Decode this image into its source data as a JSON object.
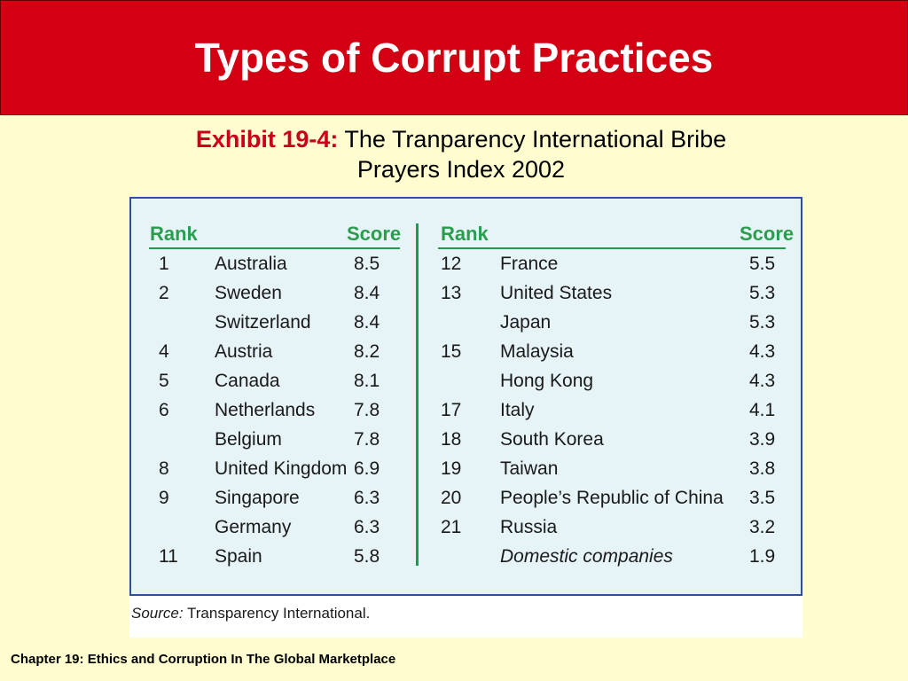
{
  "slide_title": "Types of Corrupt Practices",
  "caption": {
    "exhibit": "Exhibit 19-4:",
    "line1": "The Tranparency International Bribe",
    "line2": "Prayers Index 2002"
  },
  "table": {
    "headers": {
      "rank": "Rank",
      "score": "Score"
    },
    "left_rows": [
      {
        "rank": "1",
        "country": "Australia",
        "score": "8.5"
      },
      {
        "rank": "2",
        "country": "Sweden",
        "score": "8.4"
      },
      {
        "rank": "",
        "country": "Switzerland",
        "score": "8.4"
      },
      {
        "rank": "4",
        "country": "Austria",
        "score": "8.2"
      },
      {
        "rank": "5",
        "country": "Canada",
        "score": "8.1"
      },
      {
        "rank": "6",
        "country": "Netherlands",
        "score": "7.8"
      },
      {
        "rank": "",
        "country": "Belgium",
        "score": "7.8"
      },
      {
        "rank": "8",
        "country": "United Kingdom",
        "score": "6.9"
      },
      {
        "rank": "9",
        "country": "Singapore",
        "score": "6.3"
      },
      {
        "rank": "",
        "country": "Germany",
        "score": "6.3"
      },
      {
        "rank": "11",
        "country": "Spain",
        "score": "5.8"
      }
    ],
    "right_rows": [
      {
        "rank": "12",
        "country": "France",
        "score": "5.5"
      },
      {
        "rank": "13",
        "country": "United States",
        "score": "5.3"
      },
      {
        "rank": "",
        "country": "Japan",
        "score": "5.3"
      },
      {
        "rank": "15",
        "country": "Malaysia",
        "score": "4.3"
      },
      {
        "rank": "",
        "country": "Hong Kong",
        "score": "4.3"
      },
      {
        "rank": "17",
        "country": "Italy",
        "score": "4.1"
      },
      {
        "rank": "18",
        "country": "South Korea",
        "score": "3.9"
      },
      {
        "rank": "19",
        "country": "Taiwan",
        "score": "3.8"
      },
      {
        "rank": "20",
        "country": "People’s Republic of China",
        "score": "3.5"
      },
      {
        "rank": "21",
        "country": "Russia",
        "score": "3.2"
      },
      {
        "rank": "",
        "country": "Domestic companies",
        "score": "1.9",
        "italic": true
      }
    ],
    "source_label": "Source:",
    "source_text": "Transparency International."
  },
  "footer": "Chapter 19:  Ethics and Corruption In The Global Marketplace",
  "colors": {
    "title_bar": "#d20012",
    "background": "#fffdd0",
    "exhibit_label": "#c8001a",
    "table_header": "#2a9d4f",
    "table_fill": "#e6f3f7",
    "table_border": "#2d4fa3"
  }
}
